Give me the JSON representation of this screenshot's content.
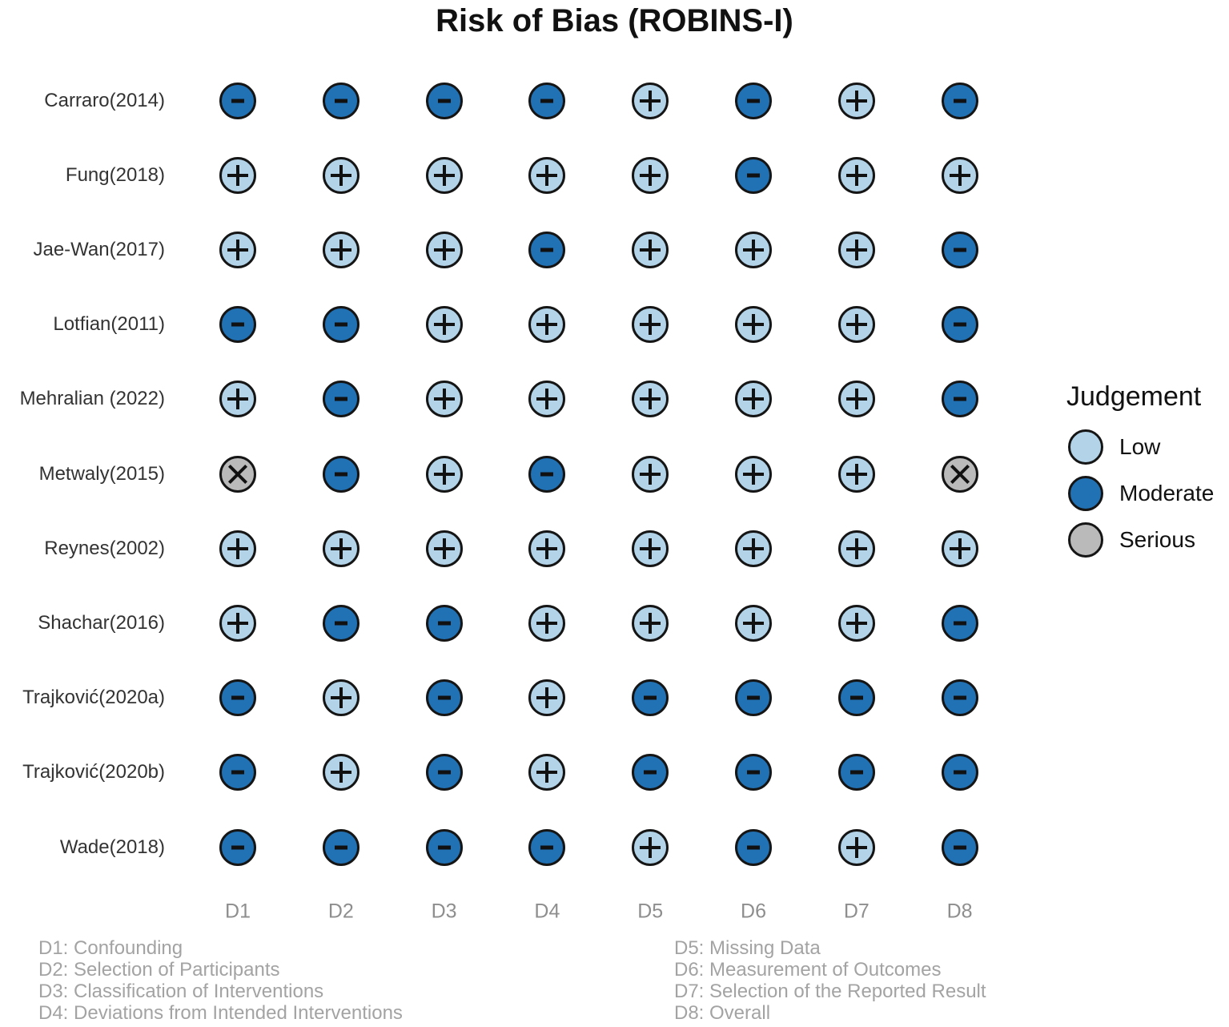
{
  "chart_data": {
    "type": "heatmap",
    "title": "Risk of Bias (ROBINS-I)",
    "x_categories": [
      "D1",
      "D2",
      "D3",
      "D4",
      "D5",
      "D6",
      "D7",
      "D8"
    ],
    "y_categories": [
      "Carraro(2014)",
      "Fung(2018)",
      "Jae-Wan(2017)",
      "Lotfian(2011)",
      "Mehralian (2022)",
      "Metwaly(2015)",
      "Reynes(2002)",
      "Shachar(2016)",
      "Trajković(2020a)",
      "Trajković(2020b)",
      "Wade(2018)"
    ],
    "values": [
      [
        "Moderate",
        "Moderate",
        "Moderate",
        "Moderate",
        "Low",
        "Moderate",
        "Low",
        "Moderate"
      ],
      [
        "Low",
        "Low",
        "Low",
        "Low",
        "Low",
        "Moderate",
        "Low",
        "Low"
      ],
      [
        "Low",
        "Low",
        "Low",
        "Moderate",
        "Low",
        "Low",
        "Low",
        "Moderate"
      ],
      [
        "Moderate",
        "Moderate",
        "Low",
        "Low",
        "Low",
        "Low",
        "Low",
        "Moderate"
      ],
      [
        "Low",
        "Moderate",
        "Low",
        "Low",
        "Low",
        "Low",
        "Low",
        "Moderate"
      ],
      [
        "Serious",
        "Moderate",
        "Low",
        "Moderate",
        "Low",
        "Low",
        "Low",
        "Serious"
      ],
      [
        "Low",
        "Low",
        "Low",
        "Low",
        "Low",
        "Low",
        "Low",
        "Low"
      ],
      [
        "Low",
        "Moderate",
        "Moderate",
        "Low",
        "Low",
        "Low",
        "Low",
        "Moderate"
      ],
      [
        "Moderate",
        "Low",
        "Moderate",
        "Low",
        "Moderate",
        "Moderate",
        "Moderate",
        "Moderate"
      ],
      [
        "Moderate",
        "Low",
        "Moderate",
        "Low",
        "Moderate",
        "Moderate",
        "Moderate",
        "Moderate"
      ],
      [
        "Moderate",
        "Moderate",
        "Moderate",
        "Moderate",
        "Low",
        "Moderate",
        "Low",
        "Moderate"
      ]
    ],
    "legend": {
      "title": "Judgement",
      "position": "right",
      "entries": [
        {
          "label": "Low",
          "color": "#b2d3e8",
          "symbol": "+"
        },
        {
          "label": "Moderate",
          "color": "#2171b5",
          "symbol": "-"
        },
        {
          "label": "Serious",
          "color": "#bababa",
          "symbol": "x"
        }
      ]
    },
    "footnotes": [
      "D1: Confounding",
      "D2: Selection of Participants",
      "D3: Classification of Interventions",
      "D4: Deviations from Intended Interventions",
      "D5: Missing Data",
      "D6: Measurement of Outcomes",
      "D7: Selection of the Reported Result",
      "D8: Overall"
    ],
    "layout_hints": {
      "grid": "off",
      "axis_lines": "off",
      "symbol_color": "#111111",
      "axis_text_color": "#8e8e8e",
      "footnote_text_color": "#a3a3a3"
    }
  }
}
